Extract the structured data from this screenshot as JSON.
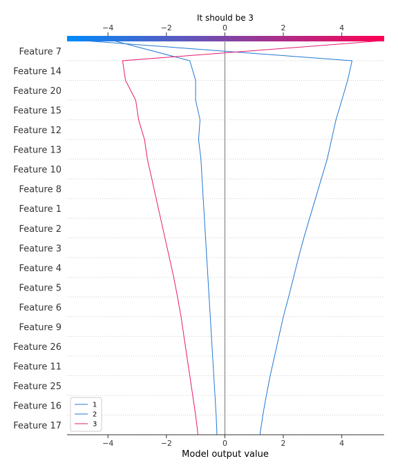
{
  "chart_data": {
    "type": "line",
    "title": "It should be 3",
    "xlabel": "Model output value",
    "ylabel": "",
    "xlim": [
      -5.4,
      5.45
    ],
    "xticks": [
      -4,
      -2,
      0,
      2,
      4
    ],
    "xtick_labels": [
      "−4",
      "−2",
      "0",
      "2",
      "4"
    ],
    "base_value": 0,
    "colorbar": {
      "from": "#008bfb",
      "to": "#ff0052"
    },
    "features": [
      "Feature 7",
      "Feature 14",
      "Feature 20",
      "Feature 15",
      "Feature 12",
      "Feature 13",
      "Feature 10",
      "Feature 8",
      "Feature 1",
      "Feature 2",
      "Feature 3",
      "Feature 4",
      "Feature 5",
      "Feature 6",
      "Feature 9",
      "Feature 26",
      "Feature 11",
      "Feature 25",
      "Feature 16",
      "Feature 17"
    ],
    "legend_position": "lower-left",
    "series": [
      {
        "name": "1",
        "color": "#1f77d4",
        "values": [
          -3.8,
          -1.2,
          -1.0,
          -1.0,
          -0.85,
          -0.9,
          -0.82,
          -0.78,
          -0.74,
          -0.7,
          -0.66,
          -0.62,
          -0.58,
          -0.54,
          -0.5,
          -0.46,
          -0.42,
          -0.38,
          -0.34,
          -0.3,
          -0.27
        ]
      },
      {
        "name": "2",
        "color": "#1f77d4",
        "values": [
          -4.8,
          4.35,
          4.2,
          4.0,
          3.8,
          3.65,
          3.5,
          3.3,
          3.1,
          2.9,
          2.7,
          2.52,
          2.35,
          2.18,
          2.0,
          1.85,
          1.7,
          1.55,
          1.42,
          1.3,
          1.2
        ]
      },
      {
        "name": "3",
        "color": "#e8176d",
        "values": [
          5.4,
          -3.5,
          -3.4,
          -3.05,
          -2.95,
          -2.75,
          -2.65,
          -2.5,
          -2.35,
          -2.2,
          -2.05,
          -1.9,
          -1.75,
          -1.62,
          -1.5,
          -1.4,
          -1.3,
          -1.2,
          -1.1,
          -1.0,
          -0.92
        ]
      }
    ]
  }
}
